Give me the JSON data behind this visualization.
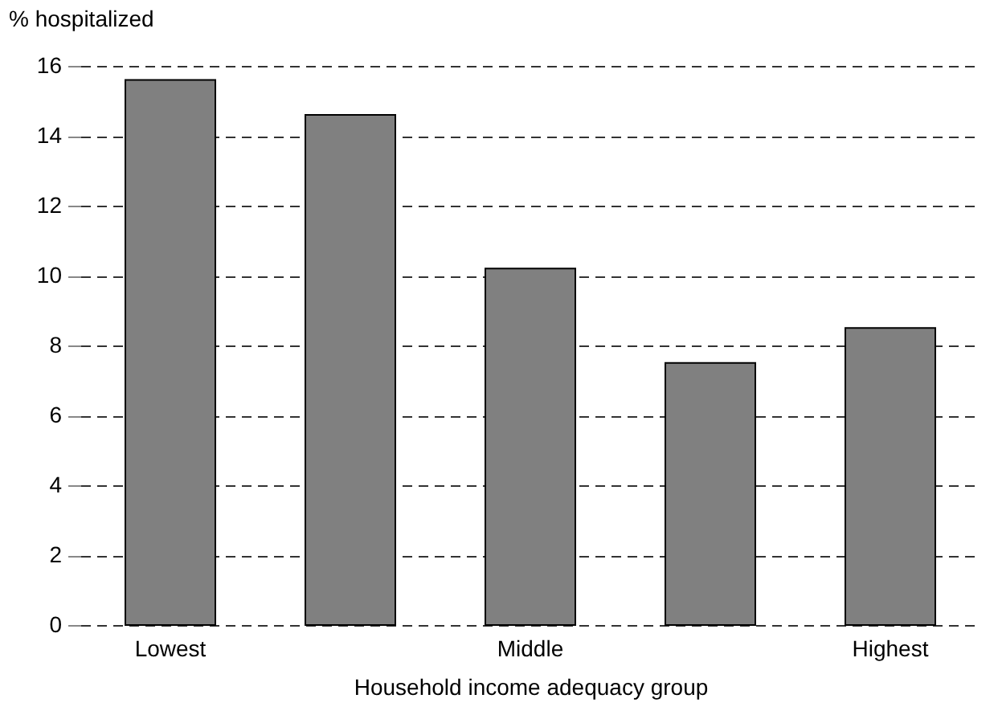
{
  "chart_data": {
    "type": "bar",
    "ylabel": "% hospitalized",
    "xlabel": "Household income adequacy group",
    "categories": [
      "Lowest",
      null,
      "Middle",
      null,
      "Highest"
    ],
    "values": [
      15.6,
      14.6,
      10.2,
      7.5,
      8.5
    ],
    "color": "#808080",
    "ylim": [
      0,
      16
    ],
    "yticks": [
      0,
      2,
      4,
      6,
      8,
      10,
      12,
      14,
      16
    ],
    "grid": "y"
  }
}
